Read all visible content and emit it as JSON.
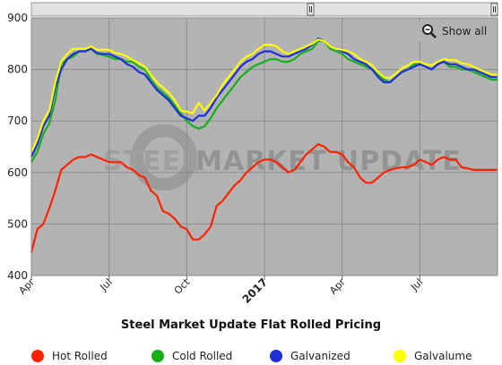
{
  "colors": {
    "plot_bg": "#b3b3b3",
    "hot_rolled": "#ff2200",
    "cold_rolled": "#16b01a",
    "galvanized": "#1f2fd8",
    "galvalume": "#ffff00"
  },
  "controls": {
    "show_all_label": "Show all",
    "zoom_icon": "magnifier-icon"
  },
  "watermark": {
    "text_light": "STEEL",
    "text_dark": "MARKET UPDATE"
  },
  "chart_data": {
    "type": "line",
    "title": "Steel Market Update Flat Rolled Pricing",
    "xlabel": "",
    "ylabel": "",
    "ylim": [
      400,
      900
    ],
    "y_ticks": [
      400,
      500,
      600,
      700,
      800,
      900
    ],
    "x_ticks": [
      {
        "label": "Apr",
        "x": 0,
        "bold": false
      },
      {
        "label": "Jul",
        "x": 13,
        "bold": false
      },
      {
        "label": "Oct",
        "x": 26,
        "bold": false
      },
      {
        "label": "2017",
        "x": 39,
        "bold": true
      },
      {
        "label": "Apr",
        "x": 52,
        "bold": false
      },
      {
        "label": "Jul",
        "x": 65,
        "bold": false
      }
    ],
    "x_range": [
      0,
      78
    ],
    "x_unit": "weeks",
    "grid": true,
    "legend_position": "bottom",
    "series": [
      {
        "name": "Hot Rolled",
        "color_key": "hot_rolled",
        "values": [
          445,
          490,
          500,
          530,
          565,
          605,
          615,
          625,
          630,
          630,
          635,
          630,
          625,
          620,
          620,
          620,
          610,
          605,
          595,
          590,
          565,
          555,
          525,
          520,
          510,
          495,
          490,
          470,
          470,
          480,
          495,
          535,
          545,
          560,
          575,
          585,
          600,
          610,
          620,
          625,
          625,
          620,
          610,
          600,
          605,
          620,
          635,
          645,
          655,
          650,
          640,
          640,
          635,
          620,
          610,
          590,
          580,
          580,
          590,
          600,
          605,
          608,
          610,
          610,
          615,
          625,
          620,
          615,
          625,
          630,
          625,
          625,
          610,
          608,
          605,
          605,
          605,
          605,
          605
        ]
      },
      {
        "name": "Cold Rolled",
        "color_key": "cold_rolled",
        "values": [
          620,
          640,
          675,
          695,
          740,
          810,
          820,
          825,
          835,
          835,
          840,
          830,
          828,
          825,
          820,
          820,
          815,
          815,
          805,
          800,
          780,
          765,
          755,
          745,
          730,
          715,
          700,
          690,
          685,
          690,
          705,
          725,
          740,
          755,
          770,
          785,
          795,
          805,
          810,
          815,
          820,
          820,
          815,
          815,
          820,
          830,
          835,
          840,
          855,
          855,
          840,
          835,
          830,
          820,
          815,
          810,
          805,
          800,
          790,
          780,
          775,
          785,
          795,
          800,
          810,
          810,
          805,
          800,
          810,
          815,
          805,
          805,
          800,
          800,
          795,
          790,
          785,
          780,
          780
        ]
      },
      {
        "name": "Galvanized",
        "color_key": "galvanized",
        "values": [
          630,
          655,
          690,
          710,
          765,
          800,
          820,
          830,
          835,
          835,
          840,
          832,
          830,
          830,
          825,
          820,
          810,
          805,
          795,
          790,
          775,
          760,
          750,
          740,
          725,
          710,
          705,
          700,
          710,
          710,
          725,
          745,
          760,
          775,
          790,
          805,
          815,
          820,
          830,
          835,
          835,
          830,
          825,
          825,
          830,
          835,
          840,
          848,
          860,
          855,
          845,
          840,
          835,
          830,
          820,
          815,
          810,
          800,
          785,
          775,
          775,
          785,
          795,
          800,
          805,
          810,
          805,
          800,
          810,
          815,
          810,
          810,
          805,
          800,
          800,
          795,
          790,
          785,
          785
        ]
      },
      {
        "name": "Galvalume",
        "color_key": "galvalume",
        "values": [
          640,
          665,
          700,
          720,
          775,
          815,
          830,
          840,
          840,
          840,
          845,
          838,
          838,
          838,
          832,
          830,
          825,
          818,
          812,
          805,
          790,
          775,
          765,
          755,
          740,
          720,
          718,
          715,
          735,
          720,
          735,
          750,
          770,
          785,
          800,
          815,
          825,
          830,
          840,
          848,
          848,
          845,
          835,
          830,
          835,
          840,
          845,
          850,
          858,
          855,
          845,
          840,
          838,
          835,
          830,
          820,
          815,
          808,
          795,
          785,
          783,
          792,
          802,
          808,
          815,
          815,
          810,
          808,
          815,
          820,
          818,
          818,
          812,
          810,
          805,
          800,
          795,
          790,
          790
        ]
      }
    ]
  }
}
